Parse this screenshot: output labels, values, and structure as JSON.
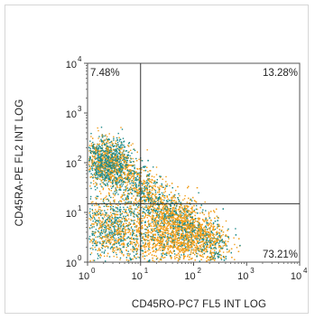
{
  "chart_data": {
    "type": "scatter",
    "xlabel": "CD45RO-PC7 FL5 INT LOG",
    "ylabel": "CD45RA-PE FL2 INT LOG",
    "x_scale": "log",
    "y_scale": "log",
    "xlim": [
      1,
      10000
    ],
    "ylim": [
      1,
      10000
    ],
    "x_ticks": [
      {
        "base": "10",
        "exp": "0"
      },
      {
        "base": "10",
        "exp": "1"
      },
      {
        "base": "10",
        "exp": "2"
      },
      {
        "base": "10",
        "exp": "3"
      },
      {
        "base": "10",
        "exp": "4"
      }
    ],
    "y_ticks": [
      {
        "base": "10",
        "exp": "0"
      },
      {
        "base": "10",
        "exp": "1"
      },
      {
        "base": "10",
        "exp": "2"
      },
      {
        "base": "10",
        "exp": "3"
      },
      {
        "base": "10",
        "exp": "4"
      }
    ],
    "quadrant_gate": {
      "x": 10,
      "y": 15
    },
    "quadrants": [
      {
        "position": "upper-left",
        "label": "7.48%"
      },
      {
        "position": "upper-right",
        "label": "13.28%"
      },
      {
        "position": "lower-right",
        "label": "73.21%"
      }
    ],
    "colors": {
      "primary": "#f29f1c",
      "secondary": "#1d8a8a",
      "gate": "#333333",
      "frame": "#555555"
    }
  }
}
